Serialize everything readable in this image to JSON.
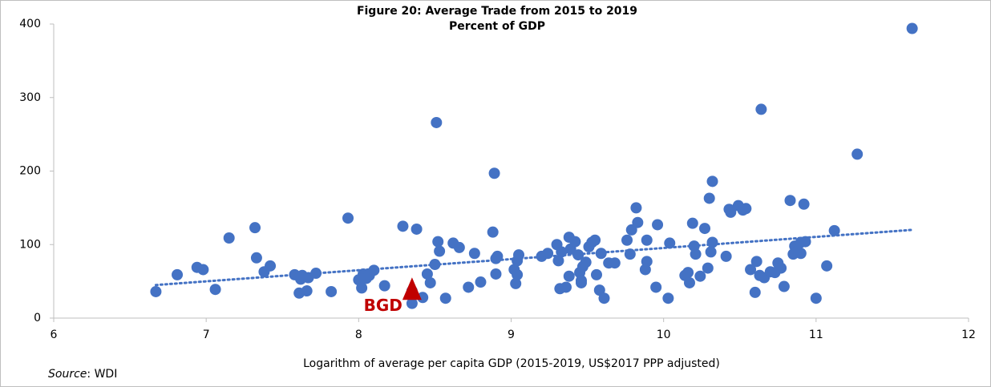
{
  "chart_data": {
    "type": "scatter",
    "title": "Figure 20: Average Trade from 2015 to 2019",
    "subtitle": "Percent of GDP",
    "x_label": "Logarithm of average per capita GDP (2015-2019, US$2017 PPP adjusted)",
    "source_label": "Source",
    "source_text": ": WDI",
    "xlim": [
      6,
      12
    ],
    "xticks": [
      6,
      7,
      8,
      9,
      10,
      11,
      12
    ],
    "ylim": [
      0,
      400
    ],
    "yticks": [
      0,
      100,
      200,
      300,
      400
    ],
    "series": [
      {
        "color": "#4472c4",
        "x": [
          6.67,
          6.81,
          6.94,
          6.98,
          7.06,
          7.15,
          7.32,
          7.33,
          7.38,
          7.42,
          7.58,
          7.61,
          7.62,
          7.63,
          7.66,
          7.67,
          7.72,
          7.82,
          7.93,
          8.0,
          8.02,
          8.03,
          8.05,
          8.07,
          8.1,
          8.17,
          8.29,
          8.35,
          8.38,
          8.42,
          8.45,
          8.47,
          8.5,
          8.51,
          8.52,
          8.53,
          8.57,
          8.62,
          8.66,
          8.72,
          8.76,
          8.8,
          8.88,
          8.89,
          8.9,
          8.9,
          8.91,
          9.02,
          9.03,
          9.04,
          9.04,
          9.05,
          9.2,
          9.24,
          9.3,
          9.31,
          9.32,
          9.33,
          9.36,
          9.38,
          9.38,
          9.39,
          9.42,
          9.44,
          9.45,
          9.46,
          9.46,
          9.47,
          9.49,
          9.51,
          9.53,
          9.55,
          9.56,
          9.58,
          9.59,
          9.61,
          9.64,
          9.68,
          9.76,
          9.78,
          9.79,
          9.82,
          9.83,
          9.88,
          9.89,
          9.89,
          9.95,
          9.96,
          10.03,
          10.04,
          10.14,
          10.16,
          10.17,
          10.19,
          10.2,
          10.21,
          10.24,
          10.27,
          10.29,
          10.3,
          10.31,
          10.32,
          10.32,
          10.41,
          10.43,
          10.44,
          10.49,
          10.52,
          10.54,
          10.57,
          10.6,
          10.61,
          10.64,
          10.63,
          10.66,
          10.7,
          10.73,
          10.75,
          10.77,
          10.79,
          10.83,
          10.85,
          10.86,
          10.88,
          10.9,
          10.9,
          10.92,
          10.93,
          11.0,
          11.07,
          11.12,
          11.27,
          11.63,
          8.35
        ],
        "values": [
          36,
          59,
          69,
          66,
          39,
          109,
          123,
          82,
          63,
          71,
          59,
          34,
          53,
          58,
          37,
          55,
          61,
          36,
          136,
          52,
          41,
          60,
          54,
          58,
          65,
          44,
          125,
          37,
          121,
          28,
          60,
          48,
          73,
          266,
          104,
          91,
          27,
          102,
          96,
          42,
          88,
          49,
          117,
          197,
          81,
          60,
          84,
          66,
          47,
          59,
          78,
          86,
          84,
          88,
          100,
          78,
          40,
          90,
          42,
          110,
          57,
          94,
          104,
          86,
          62,
          51,
          48,
          70,
          76,
          97,
          103,
          106,
          59,
          38,
          88,
          27,
          75,
          75,
          106,
          87,
          120,
          150,
          130,
          66,
          106,
          77,
          42,
          127,
          27,
          102,
          58,
          62,
          48,
          129,
          98,
          87,
          57,
          122,
          68,
          163,
          90,
          186,
          103,
          84,
          148,
          144,
          153,
          147,
          149,
          66,
          35,
          77,
          284,
          58,
          55,
          63,
          62,
          75,
          68,
          43,
          160,
          87,
          98,
          92,
          103,
          88,
          155,
          104,
          27,
          71,
          119,
          223,
          394,
          20
        ]
      }
    ],
    "trendline": {
      "color": "#4472c4",
      "x": [
        6.67,
        11.63
      ],
      "values": [
        45,
        120
      ]
    },
    "highlight": {
      "label": "BGD",
      "color": "#c00000",
      "x": 8.35,
      "value": 40
    }
  }
}
